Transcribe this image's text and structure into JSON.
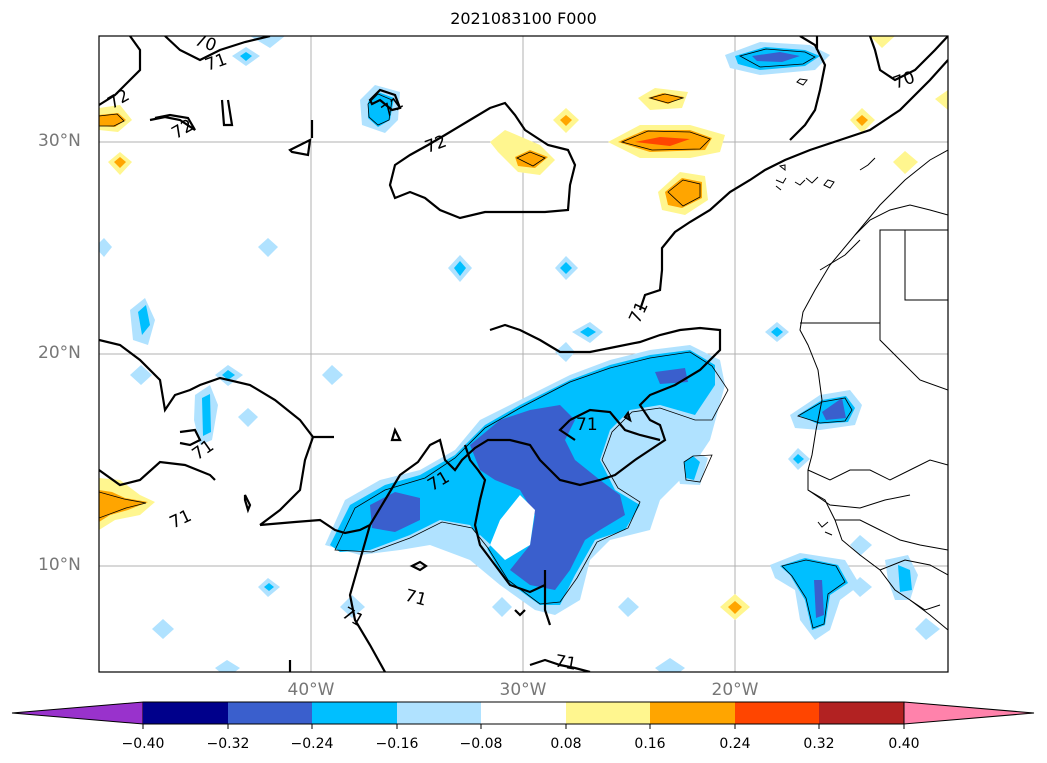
{
  "title": "2021083100 F000",
  "lat_labels": [
    "30°N",
    "20°N",
    "10°N"
  ],
  "lon_labels": [
    "40°W",
    "30°W",
    "20°W"
  ],
  "contour_labels": [
    "70",
    "71",
    "72"
  ],
  "colorbar": {
    "ticks": [
      "−0.40",
      "−0.32",
      "−0.24",
      "−0.16",
      "−0.08",
      "0.08",
      "0.16",
      "0.24",
      "0.32",
      "0.40"
    ],
    "colors": [
      "#9932cc",
      "#00008b",
      "#3a5fcd",
      "#00bfff",
      "#b0e2ff",
      "#ffffff",
      "#fff68f",
      "#ffa500",
      "#ff4500",
      "#b22222",
      "#ff82ab"
    ]
  },
  "palette": {
    "neg_light": "#b0e2ff",
    "neg_mid": "#00bfff",
    "neg_strong": "#3a5fcd",
    "pos_light": "#fff68f",
    "pos_mid": "#ffa500",
    "pos_strong": "#ff4500"
  }
}
